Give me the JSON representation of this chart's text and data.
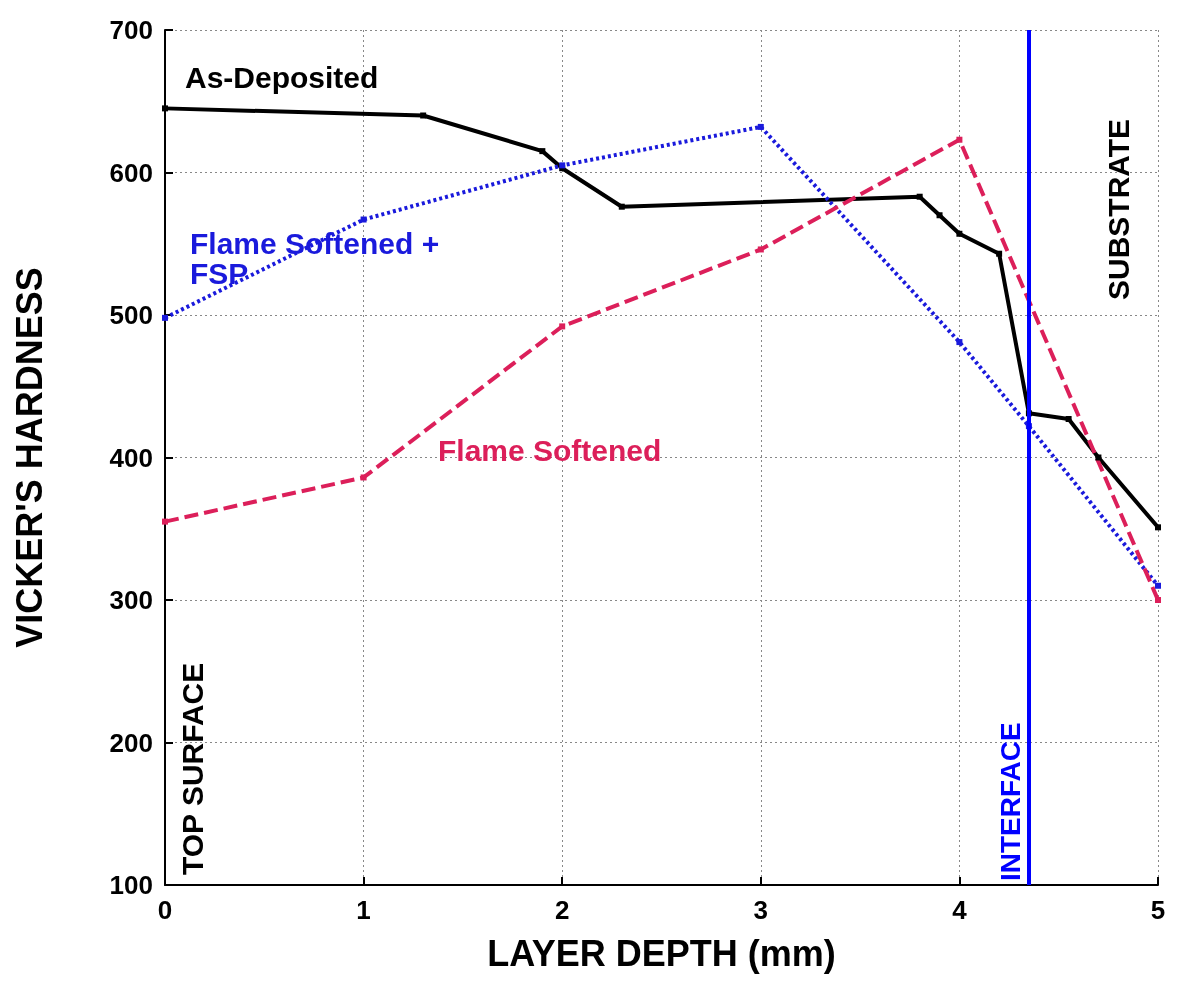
{
  "chart_data": {
    "type": "line",
    "xlabel": "LAYER DEPTH (mm)",
    "ylabel": "VICKER'S HARDNESS",
    "xlim": [
      0,
      5
    ],
    "xticks": [
      0,
      1,
      2,
      3,
      4,
      5
    ],
    "ylim": [
      100,
      700
    ],
    "yticks": [
      100,
      200,
      300,
      400,
      500,
      600,
      700
    ],
    "grid": true,
    "marker": "square",
    "series": [
      {
        "name": "As-Deposited",
        "color": "#000000",
        "line_style": "solid",
        "x": [
          0,
          1.3,
          1.9,
          2.0,
          2.3,
          3.8,
          3.9,
          4.0,
          4.2,
          4.35,
          4.55,
          4.7,
          5.0
        ],
        "values": [
          645,
          640,
          615,
          603,
          576,
          583,
          570,
          557,
          543,
          431,
          427,
          400,
          351
        ]
      },
      {
        "name": "Flame Softened + FSP",
        "color": "#1a1adc",
        "line_style": "dotted",
        "x": [
          0,
          1,
          2,
          3,
          4,
          4.35,
          5
        ],
        "values": [
          498,
          567,
          605,
          632,
          481,
          422,
          310
        ]
      },
      {
        "name": "Flame Softened",
        "color": "#dc1f5a",
        "line_style": "dashed",
        "x": [
          0,
          1,
          2,
          3,
          4,
          5
        ],
        "values": [
          355,
          386,
          492,
          546,
          623,
          300
        ]
      }
    ],
    "ref_lines": [
      {
        "axis": "x",
        "value": 4.35,
        "label": "INTERFACE",
        "color": "#0000ff"
      }
    ],
    "annotations": [
      "TOP SURFACE",
      "SUBSTRATE"
    ]
  }
}
